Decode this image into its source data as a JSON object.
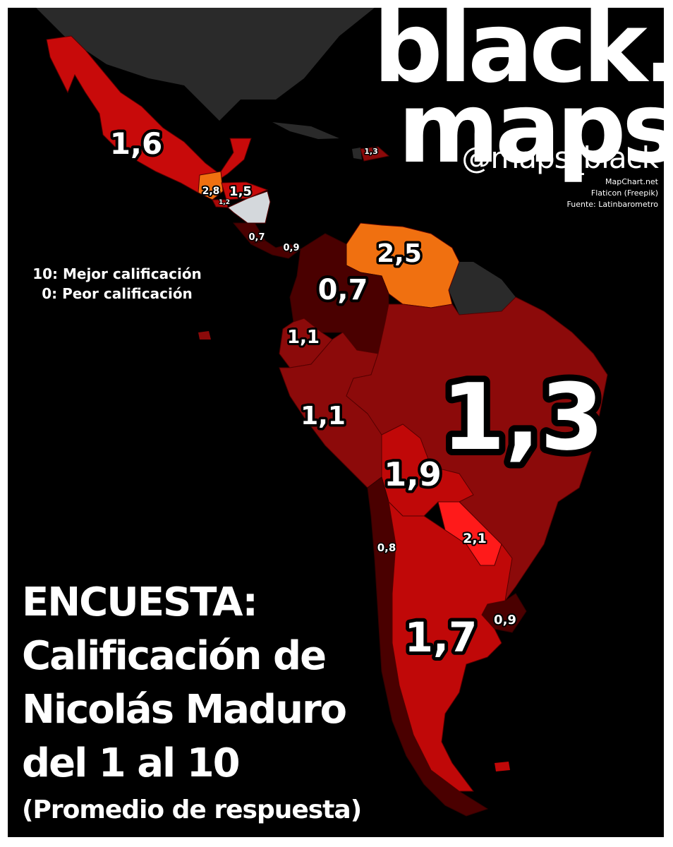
{
  "brand": {
    "line1": "black.",
    "line2": "maps",
    "handle": "@maps_black",
    "credits": [
      "MapChart.net",
      "Flaticon (Freepik)",
      "Fuente: Latinbarometro"
    ]
  },
  "legend": {
    "best": "10: Mejor calificación",
    "worst": "0: Peor calificación"
  },
  "title": {
    "line1": "ENCUESTA:",
    "line2": "Calificación de",
    "line3": "Nicolás Maduro",
    "line4": "del 1 al 10",
    "line5": "(Promedio de respuesta)"
  },
  "colors": {
    "background": "#000000",
    "no_data_dark": "#2a2a2a",
    "no_data_light": "#d4d8dc",
    "scale_darkest": "#4a0000",
    "scale_dark": "#6b0000",
    "scale_mid": "#8c0a0a",
    "scale_red": "#c00808",
    "scale_bright": "#dd0000",
    "scale_hot": "#ff1a1a",
    "scale_orange": "#f07010",
    "scale_orange_light": "#ff8c1a"
  },
  "countries": [
    {
      "name": "México",
      "score": "1,6",
      "color": "#c80a0a"
    },
    {
      "name": "Guatemala",
      "score": "2,8",
      "color": "#f07010"
    },
    {
      "name": "Honduras",
      "score": "1,5",
      "color": "#c80a0a"
    },
    {
      "name": "El Salvador",
      "score": "1,2",
      "color": "#a80808"
    },
    {
      "name": "Nicaragua",
      "score": "",
      "color": "#d4d8dc"
    },
    {
      "name": "Costa Rica",
      "score": "0,7",
      "color": "#4a0000"
    },
    {
      "name": "Panamá",
      "score": "0,9",
      "color": "#4a0000"
    },
    {
      "name": "República Dominicana",
      "score": "1,3",
      "color": "#8c0a0a"
    },
    {
      "name": "Venezuela",
      "score": "2,5",
      "color": "#f07010"
    },
    {
      "name": "Colombia",
      "score": "0,7",
      "color": "#4a0000"
    },
    {
      "name": "Ecuador",
      "score": "1,1",
      "color": "#8c0a0a"
    },
    {
      "name": "Perú",
      "score": "1,1",
      "color": "#8c0a0a"
    },
    {
      "name": "Brasil",
      "score": "1,3",
      "color": "#8c0a0a"
    },
    {
      "name": "Bolivia",
      "score": "1,9",
      "color": "#c00808"
    },
    {
      "name": "Paraguay",
      "score": "2,1",
      "color": "#ff1a1a"
    },
    {
      "name": "Chile",
      "score": "0,8",
      "color": "#4a0000"
    },
    {
      "name": "Argentina",
      "score": "1,7",
      "color": "#c00808"
    },
    {
      "name": "Uruguay",
      "score": "0,9",
      "color": "#4a0000"
    }
  ]
}
